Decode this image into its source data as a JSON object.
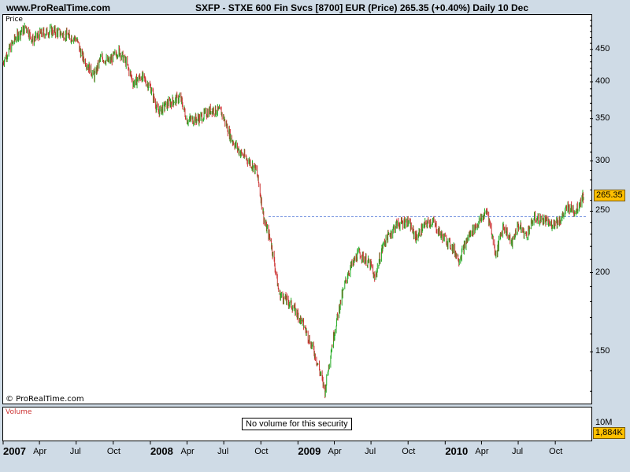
{
  "header": {
    "site": "www.ProRealTime.com",
    "title": "SXFP - STXE 600 Fin Svcs [8700] EUR (Price)   265.35 (+0.40%)   Daily  10 Dec"
  },
  "price_panel": {
    "label": "Price",
    "copyright": "© ProRealTime.com",
    "last_price_badge": "265.35"
  },
  "volume_panel": {
    "label": "Volume",
    "message": "No volume for this security",
    "scale_label": "10M",
    "value_badge": "1,884K"
  },
  "colors": {
    "up": "#22aa22",
    "down": "#cc3333",
    "reference_line": "#6f8fdf",
    "badge": "#ffc000",
    "volume_label": "#cc3333"
  },
  "chart_data": {
    "type": "line",
    "title": "SXFP - STXE 600 Fin Svcs [8700] EUR (Price)",
    "last_price": 265.35,
    "change_pct": 0.4,
    "y_scale": "log",
    "y_ticks": [
      150,
      200,
      250,
      300,
      350,
      400,
      450
    ],
    "ylim": [
      125,
      510
    ],
    "reference_line": 245,
    "x_ticks": [
      {
        "date": "2007-01-01",
        "label": "2007",
        "major": true
      },
      {
        "date": "2007-04-01",
        "label": "Apr",
        "major": false
      },
      {
        "date": "2007-07-01",
        "label": "Jul",
        "major": false
      },
      {
        "date": "2007-10-01",
        "label": "Oct",
        "major": false
      },
      {
        "date": "2008-01-01",
        "label": "2008",
        "major": true
      },
      {
        "date": "2008-04-01",
        "label": "Apr",
        "major": false
      },
      {
        "date": "2008-07-01",
        "label": "Jul",
        "major": false
      },
      {
        "date": "2008-10-01",
        "label": "Oct",
        "major": false
      },
      {
        "date": "2009-01-01",
        "label": "2009",
        "major": true
      },
      {
        "date": "2009-04-01",
        "label": "Apr",
        "major": false
      },
      {
        "date": "2009-07-01",
        "label": "Jul",
        "major": false
      },
      {
        "date": "2009-10-01",
        "label": "Oct",
        "major": false
      },
      {
        "date": "2010-01-01",
        "label": "2010",
        "major": true
      },
      {
        "date": "2010-04-01",
        "label": "Apr",
        "major": false
      },
      {
        "date": "2010-07-01",
        "label": "Jul",
        "major": false
      },
      {
        "date": "2010-10-01",
        "label": "Oct",
        "major": false
      }
    ],
    "xlim": [
      "2007-01-01",
      "2010-12-10"
    ],
    "x": [
      "2007-01-01",
      "2007-02-01",
      "2007-02-27",
      "2007-03-15",
      "2007-04-01",
      "2007-05-01",
      "2007-06-01",
      "2007-07-01",
      "2007-07-15",
      "2007-08-15",
      "2007-09-01",
      "2007-09-20",
      "2007-10-15",
      "2007-11-01",
      "2007-11-20",
      "2007-12-10",
      "2008-01-01",
      "2008-01-20",
      "2008-02-15",
      "2008-03-15",
      "2008-04-01",
      "2008-05-01",
      "2008-06-01",
      "2008-06-25",
      "2008-07-20",
      "2008-08-10",
      "2008-09-01",
      "2008-09-20",
      "2008-10-10",
      "2008-10-25",
      "2008-11-15",
      "2008-12-15",
      "2009-01-10",
      "2009-02-10",
      "2009-03-09",
      "2009-03-25",
      "2009-04-15",
      "2009-05-05",
      "2009-06-01",
      "2009-07-01",
      "2009-07-10",
      "2009-08-01",
      "2009-09-01",
      "2009-10-01",
      "2009-10-20",
      "2009-11-15",
      "2009-12-01",
      "2009-12-20",
      "2010-01-15",
      "2010-02-05",
      "2010-03-01",
      "2010-03-25",
      "2010-04-15",
      "2010-05-07",
      "2010-05-25",
      "2010-06-15",
      "2010-07-01",
      "2010-07-20",
      "2010-08-10",
      "2010-09-01",
      "2010-09-20",
      "2010-10-15",
      "2010-11-01",
      "2010-11-20",
      "2010-12-10"
    ],
    "y": [
      430,
      470,
      488,
      465,
      475,
      482,
      475,
      468,
      440,
      408,
      438,
      430,
      448,
      430,
      398,
      408,
      392,
      358,
      370,
      378,
      348,
      350,
      362,
      358,
      325,
      310,
      300,
      290,
      240,
      225,
      185,
      178,
      168,
      150,
      130,
      152,
      178,
      200,
      215,
      205,
      195,
      222,
      238,
      241,
      227,
      239,
      241,
      230,
      221,
      210,
      229,
      240,
      250,
      213,
      238,
      222,
      238,
      229,
      244,
      242,
      238,
      243,
      254,
      250,
      265.35
    ]
  }
}
